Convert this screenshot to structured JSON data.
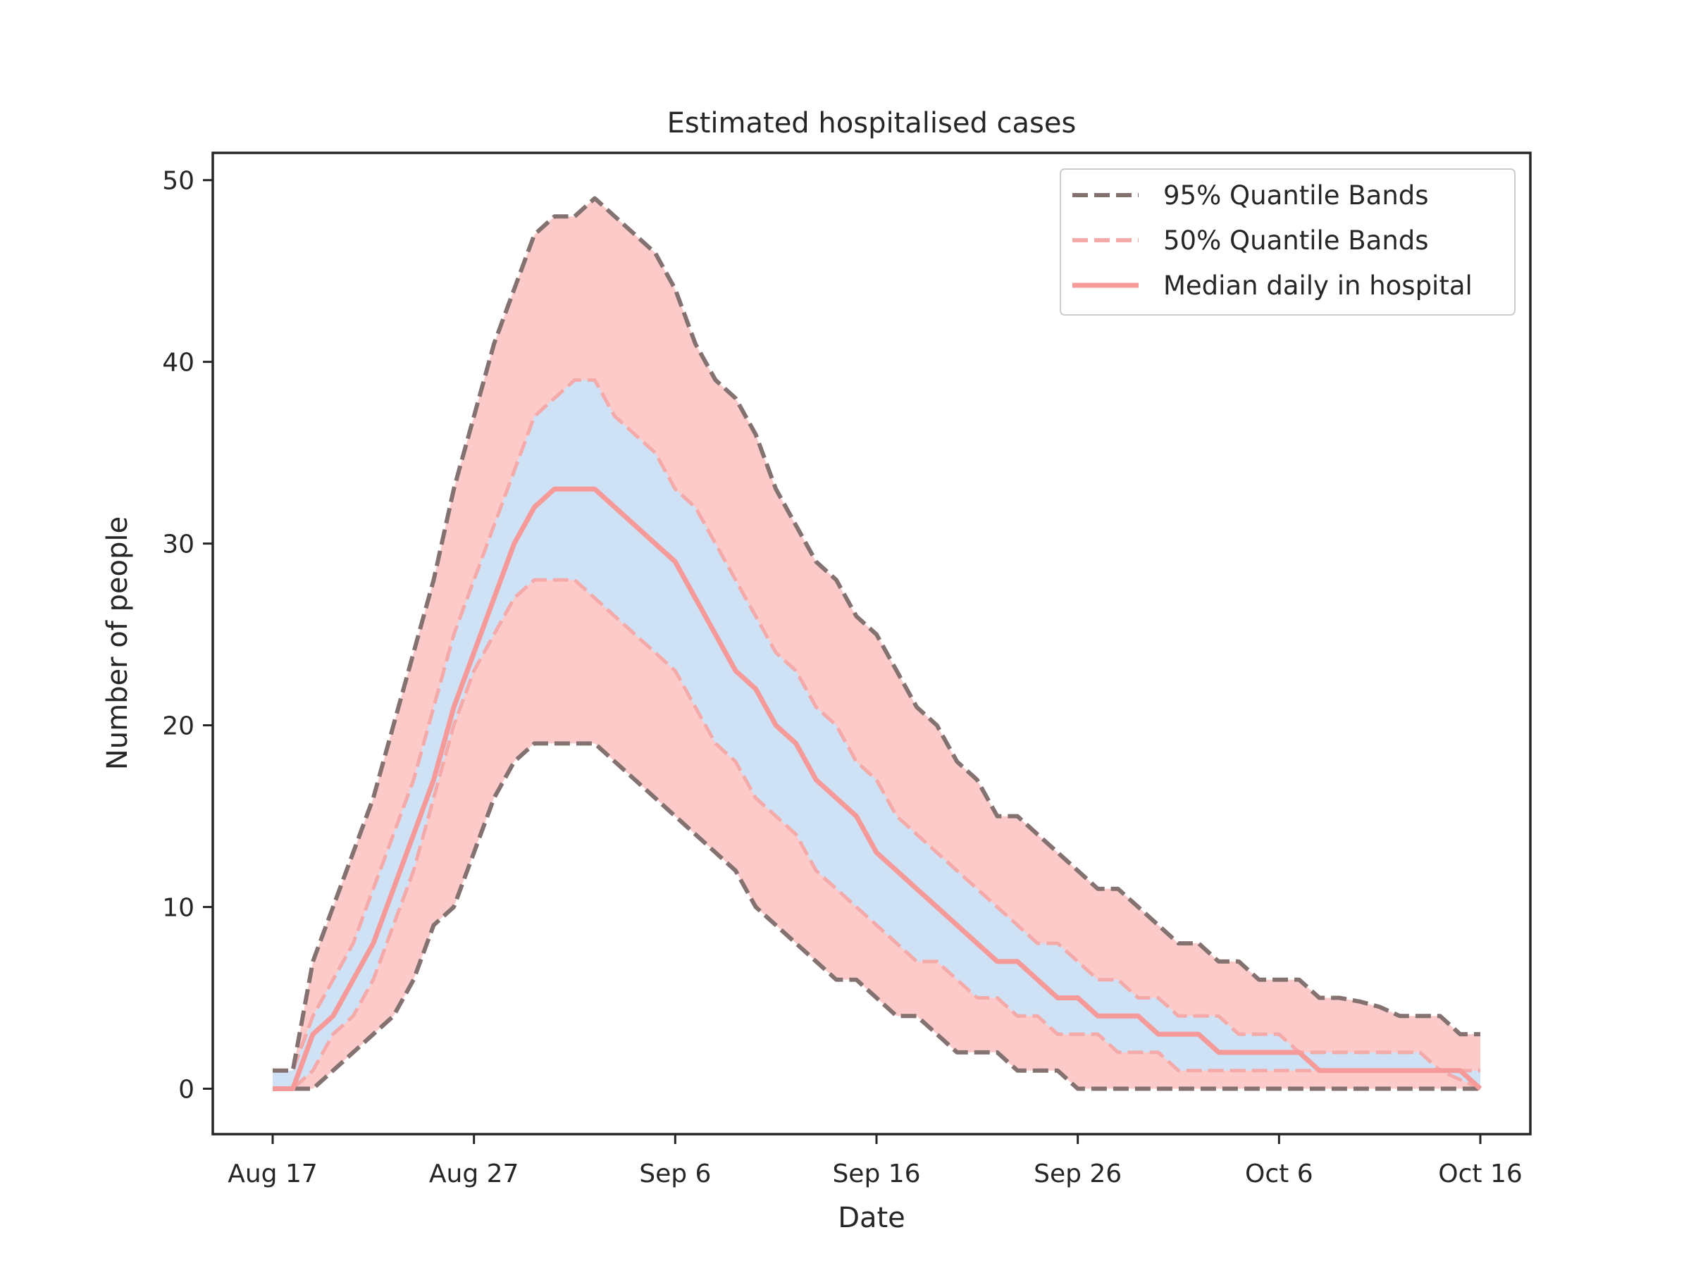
{
  "chart_data": {
    "type": "area",
    "title": "Estimated hospitalised cases",
    "xlabel": "Date",
    "ylabel": "Number of people",
    "x_start": "2020-08-17",
    "x_end": "2020-10-16",
    "x_ticks": [
      "Aug 17",
      "Aug 27",
      "Sep 6",
      "Sep 16",
      "Sep 26",
      "Oct 6",
      "Oct 16"
    ],
    "y_ticks": [
      "0",
      "10",
      "20",
      "30",
      "40",
      "50"
    ],
    "ylim": [
      -2.5,
      51.5
    ],
    "xlim": [
      "2020-08-14",
      "2020-10-19"
    ],
    "grid": false,
    "legend_position": "top-right",
    "colors": {
      "band_95_fill": "#fdcaca",
      "band_50_fill": "#cfe1f5",
      "band_95_edge": "#847271",
      "band_50_edge": "#f4aaa8",
      "median": "#f59a98",
      "axes": "#262626"
    },
    "legend": [
      {
        "label": "95% Quantile Bands",
        "style": "dashed",
        "color": "#847271"
      },
      {
        "label": "50% Quantile Bands",
        "style": "dashed",
        "color": "#f4aaa8"
      },
      {
        "label": "Median daily in hospital",
        "style": "solid",
        "color": "#f59a98"
      }
    ],
    "dates": [
      "2020-08-17",
      "2020-08-18",
      "2020-08-19",
      "2020-08-20",
      "2020-08-21",
      "2020-08-22",
      "2020-08-23",
      "2020-08-24",
      "2020-08-25",
      "2020-08-26",
      "2020-08-27",
      "2020-08-28",
      "2020-08-29",
      "2020-08-30",
      "2020-08-31",
      "2020-09-01",
      "2020-09-02",
      "2020-09-03",
      "2020-09-04",
      "2020-09-05",
      "2020-09-06",
      "2020-09-07",
      "2020-09-08",
      "2020-09-09",
      "2020-09-10",
      "2020-09-11",
      "2020-09-12",
      "2020-09-13",
      "2020-09-14",
      "2020-09-15",
      "2020-09-16",
      "2020-09-17",
      "2020-09-18",
      "2020-09-19",
      "2020-09-20",
      "2020-09-21",
      "2020-09-22",
      "2020-09-23",
      "2020-09-24",
      "2020-09-25",
      "2020-09-26",
      "2020-09-27",
      "2020-09-28",
      "2020-09-29",
      "2020-09-30",
      "2020-10-01",
      "2020-10-02",
      "2020-10-03",
      "2020-10-04",
      "2020-10-05",
      "2020-10-06",
      "2020-10-07",
      "2020-10-08",
      "2020-10-09",
      "2020-10-10",
      "2020-10-11",
      "2020-10-12",
      "2020-10-13",
      "2020-10-14",
      "2020-10-15",
      "2020-10-16"
    ],
    "series": [
      {
        "name": "95% Quantile Bands",
        "role": "upper_95",
        "values": [
          1,
          1,
          7,
          10,
          13,
          16,
          20,
          24,
          28,
          33,
          37,
          41,
          44,
          47,
          48,
          48,
          49,
          48,
          47,
          46,
          44,
          41,
          39,
          38,
          36,
          33,
          31,
          29,
          28,
          26,
          25,
          23,
          21,
          20,
          18,
          17,
          15,
          15,
          14,
          13,
          12,
          11,
          11,
          10,
          9,
          8,
          8,
          7,
          7,
          6,
          6,
          6,
          5,
          5,
          4.8,
          4.5,
          4,
          4,
          4,
          3,
          3
        ]
      },
      {
        "name": "50% Quantile Bands",
        "role": "upper_50",
        "values": [
          1,
          1,
          4,
          6,
          8,
          11,
          14,
          17,
          21,
          25,
          28,
          31,
          34,
          37,
          38,
          39,
          39,
          37,
          36,
          35,
          33,
          32,
          30,
          28,
          26,
          24,
          23,
          21,
          20,
          18,
          17,
          15,
          14,
          13,
          12,
          11,
          10,
          9,
          8,
          8,
          7,
          6,
          6,
          5,
          5,
          4,
          4,
          4,
          3,
          3,
          3,
          2,
          2,
          2,
          2,
          2,
          2,
          2,
          1,
          1,
          1
        ]
      },
      {
        "name": "Median daily in hospital",
        "role": "median",
        "values": [
          0,
          0,
          3,
          4,
          6,
          8,
          11,
          14,
          17,
          21,
          24,
          27,
          30,
          32,
          33,
          33,
          33,
          32,
          31,
          30,
          29,
          27,
          25,
          23,
          22,
          20,
          19,
          17,
          16,
          15,
          13,
          12,
          11,
          10,
          9,
          8,
          7,
          7,
          6,
          5,
          5,
          4,
          4,
          4,
          3,
          3,
          3,
          2,
          2,
          2,
          2,
          2,
          1,
          1,
          1,
          1,
          1,
          1,
          1,
          1,
          0
        ]
      },
      {
        "name": "50% Quantile Bands",
        "role": "lower_50",
        "values": [
          0,
          0,
          1,
          3,
          4,
          6,
          9,
          12,
          16,
          20,
          23,
          25,
          27,
          28,
          28,
          28,
          27,
          26,
          25,
          24,
          23,
          21,
          19,
          18,
          16,
          15,
          14,
          12,
          11,
          10,
          9,
          8,
          7,
          7,
          6,
          5,
          5,
          4,
          4,
          3,
          3,
          3,
          2,
          2,
          2,
          1,
          1,
          1,
          1,
          1,
          1,
          1,
          1,
          1,
          1,
          1,
          1,
          1,
          1,
          0.5,
          0
        ]
      },
      {
        "name": "95% Quantile Bands",
        "role": "lower_95",
        "values": [
          0,
          0,
          0,
          1,
          2,
          3,
          4,
          6,
          9,
          10,
          13,
          16,
          18,
          19,
          19,
          19,
          19,
          18,
          17,
          16,
          15,
          14,
          13,
          12,
          10,
          9,
          8,
          7,
          6,
          6,
          5,
          4,
          4,
          3,
          2,
          2,
          2,
          1,
          1,
          1,
          0,
          0,
          0,
          0,
          0,
          0,
          0,
          0,
          0,
          0,
          0,
          0,
          0,
          0,
          0,
          0,
          0,
          0,
          0,
          0,
          0
        ]
      }
    ]
  }
}
